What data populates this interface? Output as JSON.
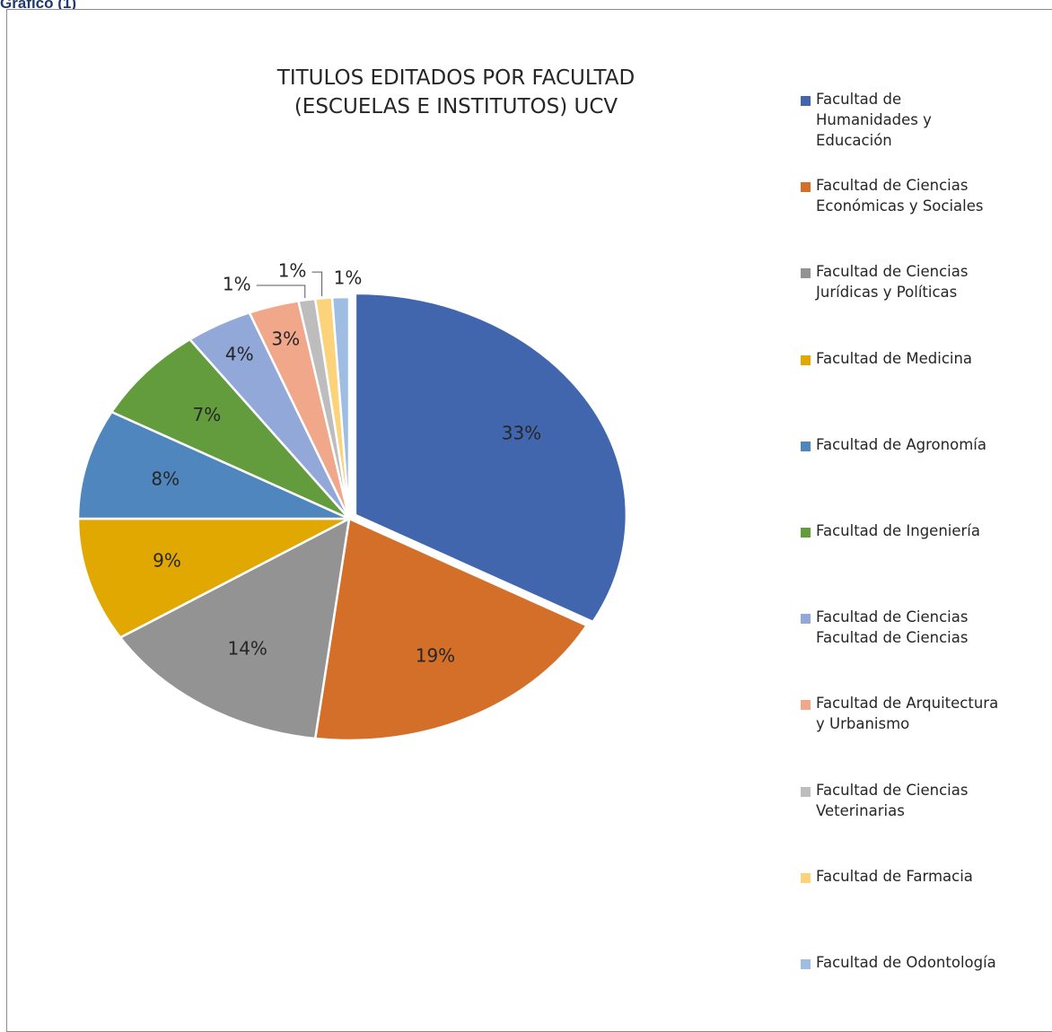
{
  "caption": "Gráfico (1)",
  "chart_data": {
    "type": "pie",
    "title": "TITULOS EDITADOS POR FACULTAD (ESCUELAS E INSTITUTOS) UCV",
    "title_lines": [
      "TITULOS EDITADOS POR FACULTAD",
      "(ESCUELAS E INSTITUTOS) UCV"
    ],
    "legend_position": "right",
    "categories": [
      "Facultad de Humanidades y Educación",
      "Facultad de Ciencias Económicas y Sociales",
      "Facultad de Ciencias Jurídicas y Políticas",
      "Facultad de Medicina",
      "Facultad de Agronomía",
      "Facultad de Ingeniería",
      "Facultad de Ciencias Facultad de Ciencias",
      "Facultad de Arquitectura y Urbanismo",
      "Facultad de Ciencias Veterinarias",
      "Facultad de Farmacia",
      "Facultad de Odontología"
    ],
    "legend_lines": [
      "Facultad de\nHumanidades y\nEducación",
      "Facultad de Ciencias\nEconómicas y Sociales",
      "Facultad de Ciencias\nJurídicas y Políticas",
      "Facultad de Medicina",
      "Facultad de Agronomía",
      "Facultad de Ingeniería",
      "Facultad de Ciencias\nFacultad de Ciencias",
      "Facultad de Arquitectura\ny Urbanismo",
      "Facultad de Ciencias\nVeterinarias",
      "Facultad de Farmacia",
      "Facultad de Odontología"
    ],
    "values": [
      33,
      19,
      14,
      9,
      8,
      7,
      4,
      3,
      1,
      1,
      1
    ],
    "data_labels": [
      "33%",
      "19%",
      "14%",
      "9%",
      "8%",
      "7%",
      "4%",
      "3%",
      "1%",
      "1%",
      "1%"
    ],
    "colors": [
      "#4166ad",
      "#d46f2a",
      "#939393",
      "#e0a800",
      "#4f86bd",
      "#629c3d",
      "#91a8d8",
      "#f0a78a",
      "#bdbdbd",
      "#fcd27b",
      "#9fbde3"
    ]
  }
}
